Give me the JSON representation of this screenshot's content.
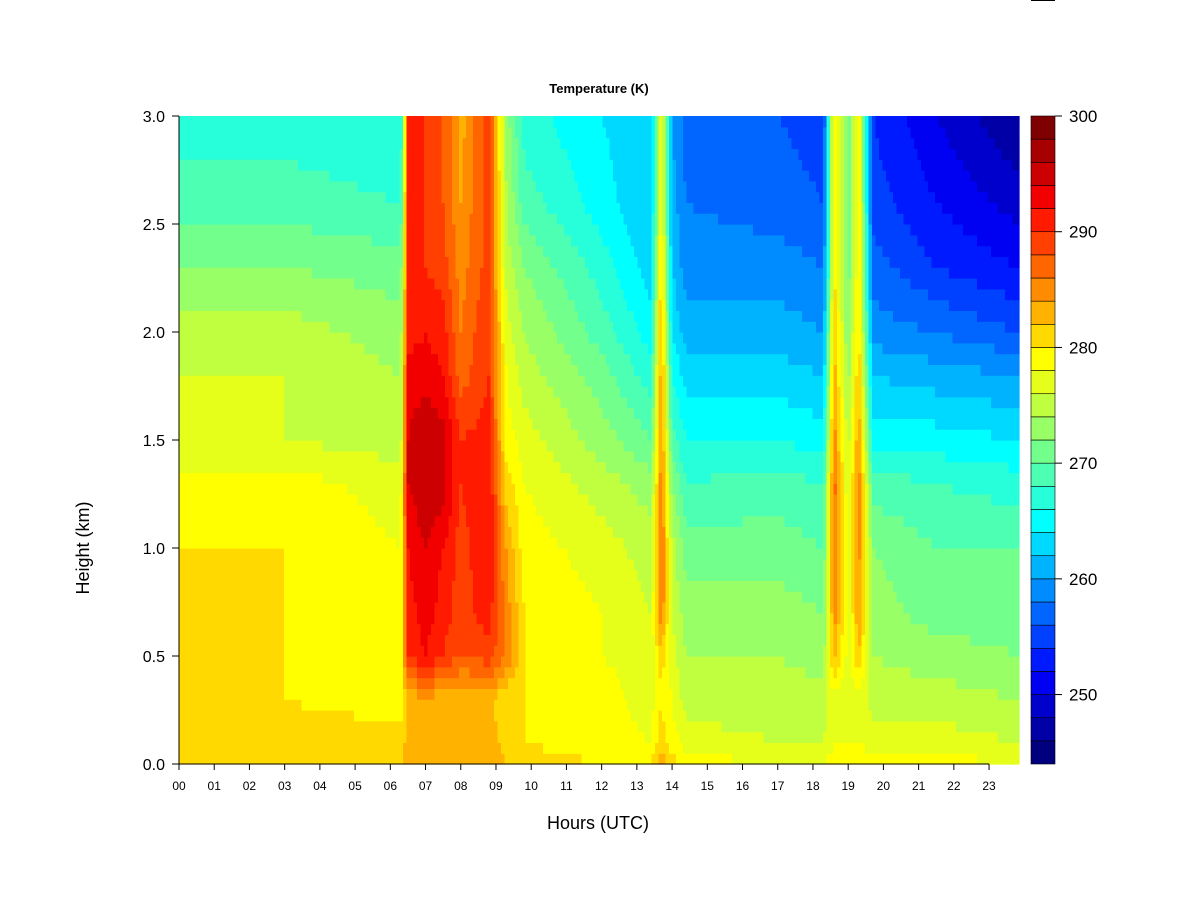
{
  "chart_data": {
    "type": "heatmap",
    "title": "Temperature (K)",
    "xlabel": "Hours (UTC)",
    "ylabel": "Height (km)",
    "x_unit": "hours UTC",
    "xlim": [
      0,
      23.85
    ],
    "ylim": [
      0,
      3.0
    ],
    "xticks": [
      "00",
      "01",
      "02",
      "03",
      "04",
      "05",
      "06",
      "07",
      "08",
      "09",
      "10",
      "11",
      "12",
      "13",
      "14",
      "15",
      "16",
      "17",
      "18",
      "19",
      "20",
      "21",
      "22",
      "23"
    ],
    "yticks": [
      "0.0",
      "0.5",
      "1.0",
      "1.5",
      "2.0",
      "2.5",
      "3.0"
    ],
    "grid": false,
    "colorbar": {
      "label_values": [
        "250",
        "260",
        "270",
        "280",
        "290",
        "300"
      ],
      "range": [
        244,
        300
      ],
      "levels": 28,
      "colors": [
        "#00007f",
        "#0000a6",
        "#0000cc",
        "#0000f2",
        "#001aff",
        "#0040ff",
        "#0066ff",
        "#008cff",
        "#00b3ff",
        "#00d9ff",
        "#00ffff",
        "#26ffd9",
        "#4dffb3",
        "#73ff8c",
        "#99ff66",
        "#bfff40",
        "#e6ff1a",
        "#ffff00",
        "#ffd900",
        "#ffb300",
        "#ff8c00",
        "#ff6600",
        "#ff4000",
        "#ff1a00",
        "#f20000",
        "#cc0000",
        "#a60000",
        "#7f0000"
      ]
    },
    "heights_km": [
      0.0,
      0.1,
      0.3,
      0.5,
      0.7,
      1.0,
      1.3,
      1.5,
      1.8,
      2.0,
      2.3,
      2.6,
      3.0
    ],
    "columns": [
      {
        "hour": 0.0,
        "temps_K": [
          282,
          281,
          280,
          280,
          280,
          280,
          279,
          276,
          276,
          275,
          272,
          269,
          267
        ]
      },
      {
        "hour": 3.0,
        "temps_K": [
          282,
          281,
          280,
          280,
          280,
          280,
          279,
          276,
          276,
          275,
          272,
          269,
          267
        ]
      },
      {
        "hour": 6.3,
        "temps_K": [
          282,
          281,
          279,
          279,
          278,
          278,
          277,
          275,
          274,
          273,
          271,
          268,
          266
        ]
      },
      {
        "hour": 6.5,
        "temps_K": [
          284,
          283,
          283,
          290,
          291,
          292,
          294,
          294,
          293,
          291,
          290,
          290,
          290
        ]
      },
      {
        "hour": 7.0,
        "temps_K": [
          284,
          283,
          283,
          292,
          293,
          294,
          296,
          296,
          293,
          292,
          290,
          290,
          290
        ]
      },
      {
        "hour": 7.5,
        "temps_K": [
          283,
          283,
          283,
          290,
          291,
          292,
          295,
          295,
          292,
          291,
          289,
          288,
          288
        ]
      },
      {
        "hour": 8.0,
        "temps_K": [
          283,
          282,
          282,
          288,
          289,
          289,
          290,
          290,
          287,
          286,
          285,
          284,
          283
        ]
      },
      {
        "hour": 8.8,
        "temps_K": [
          284,
          283,
          283,
          289,
          291,
          292,
          292,
          291,
          290,
          290,
          289,
          289,
          289
        ]
      },
      {
        "hour": 9.3,
        "temps_K": [
          282,
          281,
          280,
          286,
          285,
          284,
          281,
          279,
          278,
          277,
          275,
          274,
          273
        ]
      },
      {
        "hour": 9.8,
        "temps_K": [
          281,
          280,
          280,
          280,
          280,
          279,
          278,
          277,
          275,
          274,
          272,
          269,
          267
        ]
      },
      {
        "hour": 12.0,
        "temps_K": [
          280,
          279,
          279,
          278,
          278,
          277,
          275,
          273,
          271,
          269,
          267,
          265,
          264
        ]
      },
      {
        "hour": 13.4,
        "temps_K": [
          280,
          278,
          277,
          277,
          276,
          275,
          273,
          270,
          267,
          265,
          263,
          262,
          262
        ]
      },
      {
        "hour": 13.7,
        "temps_K": [
          283,
          281,
          280,
          281,
          286,
          287,
          286,
          285,
          284,
          283,
          281,
          279,
          279
        ]
      },
      {
        "hour": 14.0,
        "temps_K": [
          281,
          279,
          278,
          277,
          276,
          275,
          272,
          269,
          266,
          264,
          262,
          261,
          260
        ]
      },
      {
        "hour": 14.4,
        "temps_K": [
          279,
          277,
          275,
          274,
          273,
          271,
          268,
          266,
          263,
          261,
          259,
          258,
          257
        ]
      },
      {
        "hour": 17.0,
        "temps_K": [
          278,
          276,
          275,
          274,
          273,
          271,
          269,
          266,
          263,
          261,
          259,
          257,
          256
        ]
      },
      {
        "hour": 18.3,
        "temps_K": [
          278,
          276,
          275,
          273,
          272,
          270,
          268,
          265,
          262,
          260,
          258,
          256,
          255
        ]
      },
      {
        "hour": 18.6,
        "temps_K": [
          279,
          278,
          277,
          283,
          285,
          286,
          287,
          285,
          283,
          282,
          280,
          280,
          280
        ]
      },
      {
        "hour": 19.0,
        "temps_K": [
          279,
          278,
          277,
          277,
          277,
          277,
          276,
          275,
          273,
          272,
          271,
          271,
          271
        ]
      },
      {
        "hour": 19.3,
        "temps_K": [
          279,
          278,
          277,
          282,
          284,
          285,
          286,
          284,
          282,
          281,
          280,
          280,
          280
        ]
      },
      {
        "hour": 19.7,
        "temps_K": [
          279,
          277,
          275,
          274,
          273,
          272,
          269,
          265,
          262,
          259,
          257,
          255,
          254
        ]
      },
      {
        "hour": 21.5,
        "temps_K": [
          279,
          277,
          275,
          273,
          271,
          270,
          268,
          265,
          261,
          258,
          254,
          252,
          250
        ]
      },
      {
        "hour": 23.85,
        "temps_K": [
          278,
          276,
          274,
          272,
          271,
          270,
          267,
          264,
          260,
          256,
          252,
          249,
          246
        ]
      }
    ]
  }
}
